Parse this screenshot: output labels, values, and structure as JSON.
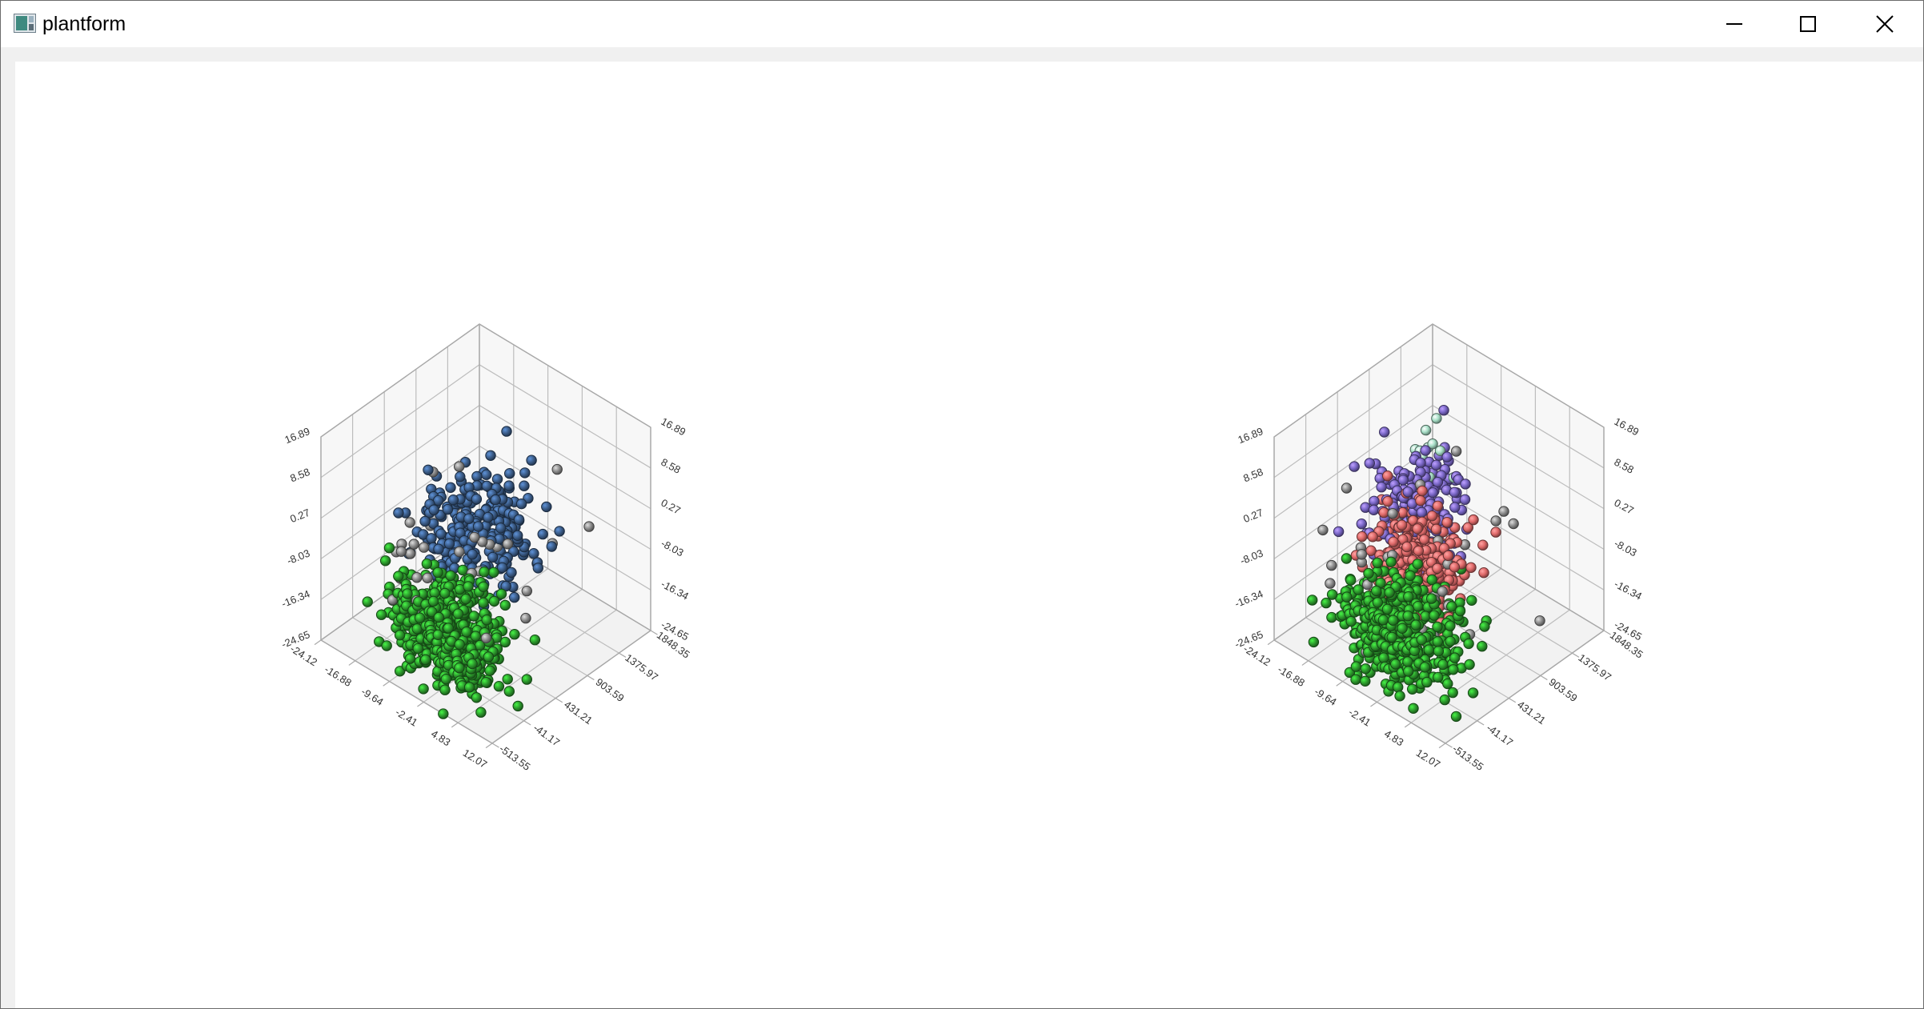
{
  "window": {
    "title": "plantform",
    "icon": "app-icon",
    "controls": [
      "minimize-icon",
      "maximize-icon",
      "close-icon"
    ]
  },
  "chart_data": [
    {
      "type": "scatter",
      "title": "",
      "z_ticks": [
        "16.89",
        "8.58",
        "0.27",
        "-8.03",
        "-16.34",
        "-24.65"
      ],
      "x_ticks": [
        "-24.12",
        "-16.88",
        "-9.64",
        "-2.41",
        "4.83",
        "12.07"
      ],
      "y_ticks": [
        "1848.35",
        "1375.97",
        "903.59",
        "431.21",
        "-41.17",
        "-513.55"
      ],
      "series": [
        {
          "color": "#2e9e2e",
          "clusters": [
            {
              "x": -1.5,
              "y": -250,
              "z": -12.0,
              "sx": 5.0,
              "sy": 260,
              "sz": 4.5,
              "n": 520
            }
          ]
        },
        {
          "color": "#3d5f8c",
          "clusters": [
            {
              "x": -9.0,
              "y": 780,
              "z": -6.0,
              "sx": 4.5,
              "sy": 300,
              "sz": 5.0,
              "n": 260
            }
          ]
        },
        {
          "color": "#8f8f8f",
          "clusters": [
            {
              "x": -8.0,
              "y": 350,
              "z": -8.0,
              "sx": 7.0,
              "sy": 550,
              "sz": 6.0,
              "n": 40
            }
          ]
        }
      ],
      "grid": true
    },
    {
      "type": "scatter",
      "title": "",
      "z_ticks": [
        "16.89",
        "8.58",
        "0.27",
        "-8.03",
        "-16.34",
        "-24.65"
      ],
      "x_ticks": [
        "-24.12",
        "-16.88",
        "-9.64",
        "-2.41",
        "4.83",
        "12.07"
      ],
      "y_ticks": [
        "1848.35",
        "1375.97",
        "903.59",
        "431.21",
        "-41.17",
        "-513.55"
      ],
      "series": [
        {
          "color": "#2e9e2e",
          "clusters": [
            {
              "x": -1.5,
              "y": -250,
              "z": -12.0,
              "sx": 5.0,
              "sy": 260,
              "sz": 4.5,
              "n": 500
            }
          ]
        },
        {
          "color": "#e06a6a",
          "clusters": [
            {
              "x": -7.0,
              "y": 420,
              "z": -8.0,
              "sx": 4.0,
              "sy": 240,
              "sz": 4.5,
              "n": 300
            }
          ]
        },
        {
          "color": "#7b68c8",
          "clusters": [
            {
              "x": -13.5,
              "y": 900,
              "z": -4.0,
              "sx": 3.5,
              "sy": 260,
              "sz": 4.5,
              "n": 170
            }
          ]
        },
        {
          "color": "#a8e0c8",
          "clusters": [
            {
              "x": -17.5,
              "y": 1300,
              "z": 0.0,
              "sx": 2.0,
              "sy": 120,
              "sz": 3.0,
              "n": 10
            }
          ]
        },
        {
          "color": "#8f8f8f",
          "clusters": [
            {
              "x": -8.0,
              "y": 350,
              "z": -8.0,
              "sx": 7.0,
              "sy": 550,
              "sz": 6.0,
              "n": 40
            }
          ]
        }
      ],
      "grid": true
    }
  ]
}
